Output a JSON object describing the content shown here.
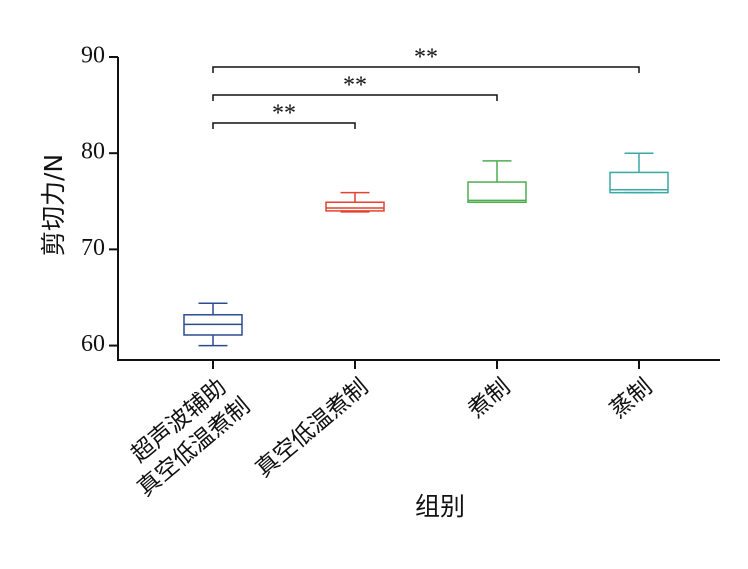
{
  "chart_data": {
    "type": "box",
    "y_label": "剪切力/N",
    "x_label": "组别",
    "categories": [
      "超声波辅助\n真空低温煮制",
      "真空低温煮制",
      "煮制",
      "蒸制"
    ],
    "series": [
      {
        "color": "#2d4b90",
        "min": 60.0,
        "q1": 61.1,
        "median": 62.2,
        "q3": 63.2,
        "max": 64.4
      },
      {
        "color": "#e5412d",
        "min": 73.9,
        "q1": 74.0,
        "median": 74.3,
        "q3": 74.9,
        "max": 75.9
      },
      {
        "color": "#4cae4f",
        "min": 74.9,
        "q1": 74.9,
        "median": 75.1,
        "q3": 77.0,
        "max": 79.2
      },
      {
        "color": "#3aa9a6",
        "min": 75.9,
        "q1": 75.9,
        "median": 76.2,
        "q3": 78.0,
        "max": 80.0
      }
    ],
    "comparisons": [
      {
        "groups": [
          0,
          1
        ],
        "label": "**"
      },
      {
        "groups": [
          0,
          2
        ],
        "label": "**"
      },
      {
        "groups": [
          0,
          3
        ],
        "label": "**"
      }
    ],
    "ylim": [
      58.5,
      90
    ],
    "yticks": [
      60,
      70,
      80,
      90
    ]
  }
}
